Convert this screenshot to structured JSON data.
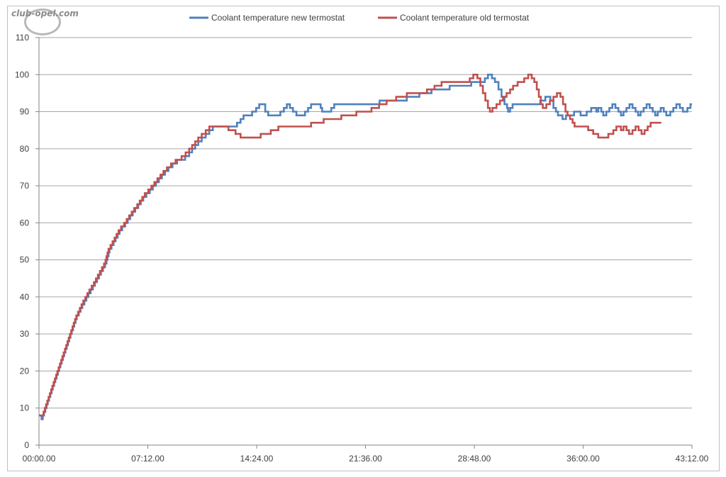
{
  "watermark": "club-opel.com",
  "chart_data": {
    "type": "line",
    "title": "",
    "xlabel": "",
    "ylabel": "",
    "ylim": [
      0,
      110
    ],
    "y_ticks": [
      0,
      10,
      20,
      30,
      40,
      50,
      60,
      70,
      80,
      90,
      100,
      110
    ],
    "xlim": [
      0,
      2592
    ],
    "x_unit": "seconds (mm:ss.00 labels)",
    "x_ticks": [
      {
        "value": 0,
        "label": "00:00.00"
      },
      {
        "value": 432,
        "label": "07:12.00"
      },
      {
        "value": 864,
        "label": "14:24.00"
      },
      {
        "value": 1296,
        "label": "21:36.00"
      },
      {
        "value": 1728,
        "label": "28:48.00"
      },
      {
        "value": 2160,
        "label": "36:00.00"
      },
      {
        "value": 2592,
        "label": "43:12.00"
      }
    ],
    "grid": "horizontal",
    "legend_position": "top",
    "series": [
      {
        "name": "Coolant temperature new termostat",
        "color": "#4f81bd",
        "points": [
          [
            0,
            8
          ],
          [
            10,
            7
          ],
          [
            15,
            8
          ],
          [
            20,
            9
          ],
          [
            25,
            10
          ],
          [
            30,
            11
          ],
          [
            35,
            12
          ],
          [
            40,
            13
          ],
          [
            45,
            14
          ],
          [
            50,
            15
          ],
          [
            55,
            16
          ],
          [
            60,
            17
          ],
          [
            65,
            18
          ],
          [
            70,
            19
          ],
          [
            75,
            20
          ],
          [
            80,
            21
          ],
          [
            85,
            22
          ],
          [
            90,
            23
          ],
          [
            95,
            24
          ],
          [
            100,
            25
          ],
          [
            105,
            26
          ],
          [
            110,
            27
          ],
          [
            115,
            28
          ],
          [
            120,
            29
          ],
          [
            125,
            30
          ],
          [
            130,
            31
          ],
          [
            135,
            32
          ],
          [
            140,
            33
          ],
          [
            145,
            34
          ],
          [
            150,
            35
          ],
          [
            158,
            36
          ],
          [
            165,
            37
          ],
          [
            172,
            38
          ],
          [
            180,
            39
          ],
          [
            188,
            40
          ],
          [
            196,
            41
          ],
          [
            205,
            42
          ],
          [
            214,
            43
          ],
          [
            222,
            44
          ],
          [
            230,
            45
          ],
          [
            238,
            46
          ],
          [
            246,
            47
          ],
          [
            254,
            48
          ],
          [
            262,
            49
          ],
          [
            268,
            50
          ],
          [
            272,
            51
          ],
          [
            276,
            52
          ],
          [
            280,
            53
          ],
          [
            288,
            54
          ],
          [
            296,
            55
          ],
          [
            304,
            56
          ],
          [
            312,
            57
          ],
          [
            320,
            58
          ],
          [
            330,
            59
          ],
          [
            342,
            60
          ],
          [
            352,
            61
          ],
          [
            362,
            62
          ],
          [
            372,
            63
          ],
          [
            382,
            64
          ],
          [
            394,
            65
          ],
          [
            404,
            66
          ],
          [
            414,
            67
          ],
          [
            426,
            68
          ],
          [
            440,
            69
          ],
          [
            452,
            70
          ],
          [
            464,
            71
          ],
          [
            476,
            72
          ],
          [
            488,
            73
          ],
          [
            500,
            74
          ],
          [
            514,
            75
          ],
          [
            530,
            76
          ],
          [
            548,
            77
          ],
          [
            580,
            78
          ],
          [
            596,
            79
          ],
          [
            608,
            80
          ],
          [
            620,
            81
          ],
          [
            632,
            82
          ],
          [
            646,
            83
          ],
          [
            662,
            84
          ],
          [
            676,
            85
          ],
          [
            690,
            86
          ],
          [
            786,
            87
          ],
          [
            800,
            88
          ],
          [
            812,
            89
          ],
          [
            846,
            90
          ],
          [
            862,
            91
          ],
          [
            874,
            92
          ],
          [
            898,
            90
          ],
          [
            910,
            89
          ],
          [
            958,
            90
          ],
          [
            972,
            91
          ],
          [
            984,
            92
          ],
          [
            996,
            91
          ],
          [
            1008,
            90
          ],
          [
            1022,
            89
          ],
          [
            1056,
            90
          ],
          [
            1068,
            91
          ],
          [
            1080,
            92
          ],
          [
            1118,
            91
          ],
          [
            1124,
            90
          ],
          [
            1160,
            91
          ],
          [
            1172,
            92
          ],
          [
            1352,
            93
          ],
          [
            1460,
            94
          ],
          [
            1510,
            95
          ],
          [
            1558,
            96
          ],
          [
            1630,
            97
          ],
          [
            1716,
            98
          ],
          [
            1770,
            99
          ],
          [
            1782,
            100
          ],
          [
            1798,
            99
          ],
          [
            1810,
            98
          ],
          [
            1824,
            96
          ],
          [
            1836,
            94
          ],
          [
            1848,
            92
          ],
          [
            1858,
            91
          ],
          [
            1862,
            90
          ],
          [
            1870,
            91
          ],
          [
            1880,
            92
          ],
          [
            1990,
            93
          ],
          [
            2010,
            94
          ],
          [
            2030,
            93
          ],
          [
            2042,
            91
          ],
          [
            2052,
            90
          ],
          [
            2060,
            89
          ],
          [
            2078,
            88
          ],
          [
            2092,
            89
          ],
          [
            2124,
            90
          ],
          [
            2150,
            89
          ],
          [
            2174,
            90
          ],
          [
            2192,
            91
          ],
          [
            2212,
            90
          ],
          [
            2220,
            91
          ],
          [
            2232,
            90
          ],
          [
            2240,
            89
          ],
          [
            2252,
            90
          ],
          [
            2264,
            91
          ],
          [
            2276,
            92
          ],
          [
            2288,
            91
          ],
          [
            2300,
            90
          ],
          [
            2310,
            89
          ],
          [
            2320,
            90
          ],
          [
            2332,
            91
          ],
          [
            2344,
            92
          ],
          [
            2356,
            91
          ],
          [
            2368,
            90
          ],
          [
            2378,
            89
          ],
          [
            2388,
            90
          ],
          [
            2400,
            91
          ],
          [
            2412,
            92
          ],
          [
            2424,
            91
          ],
          [
            2436,
            90
          ],
          [
            2446,
            89
          ],
          [
            2456,
            90
          ],
          [
            2468,
            91
          ],
          [
            2480,
            90
          ],
          [
            2490,
            89
          ],
          [
            2506,
            90
          ],
          [
            2518,
            91
          ],
          [
            2530,
            92
          ],
          [
            2544,
            91
          ],
          [
            2556,
            90
          ],
          [
            2574,
            91
          ],
          [
            2586,
            92
          ],
          [
            2600,
            92
          ]
        ]
      },
      {
        "name": "Coolant temperature old termostat",
        "color": "#c0504d",
        "points": [
          [
            0,
            8
          ],
          [
            18,
            9
          ],
          [
            23,
            10
          ],
          [
            28,
            11
          ],
          [
            33,
            12
          ],
          [
            38,
            13
          ],
          [
            43,
            14
          ],
          [
            48,
            15
          ],
          [
            53,
            16
          ],
          [
            58,
            17
          ],
          [
            63,
            18
          ],
          [
            68,
            19
          ],
          [
            73,
            20
          ],
          [
            78,
            21
          ],
          [
            83,
            22
          ],
          [
            88,
            23
          ],
          [
            93,
            24
          ],
          [
            98,
            25
          ],
          [
            103,
            26
          ],
          [
            108,
            27
          ],
          [
            113,
            28
          ],
          [
            118,
            29
          ],
          [
            123,
            30
          ],
          [
            128,
            31
          ],
          [
            133,
            32
          ],
          [
            138,
            33
          ],
          [
            143,
            34
          ],
          [
            148,
            35
          ],
          [
            155,
            36
          ],
          [
            162,
            37
          ],
          [
            169,
            38
          ],
          [
            176,
            39
          ],
          [
            184,
            40
          ],
          [
            192,
            41
          ],
          [
            200,
            42
          ],
          [
            209,
            43
          ],
          [
            218,
            44
          ],
          [
            226,
            45
          ],
          [
            234,
            46
          ],
          [
            242,
            47
          ],
          [
            250,
            48
          ],
          [
            258,
            49
          ],
          [
            264,
            50
          ],
          [
            268,
            51
          ],
          [
            272,
            52
          ],
          [
            276,
            53
          ],
          [
            284,
            54
          ],
          [
            292,
            55
          ],
          [
            300,
            56
          ],
          [
            308,
            57
          ],
          [
            316,
            58
          ],
          [
            326,
            59
          ],
          [
            338,
            60
          ],
          [
            348,
            61
          ],
          [
            358,
            62
          ],
          [
            368,
            63
          ],
          [
            378,
            64
          ],
          [
            390,
            65
          ],
          [
            400,
            66
          ],
          [
            410,
            67
          ],
          [
            420,
            68
          ],
          [
            434,
            69
          ],
          [
            446,
            70
          ],
          [
            458,
            71
          ],
          [
            470,
            72
          ],
          [
            482,
            73
          ],
          [
            494,
            74
          ],
          [
            508,
            75
          ],
          [
            524,
            76
          ],
          [
            542,
            77
          ],
          [
            566,
            78
          ],
          [
            582,
            79
          ],
          [
            596,
            80
          ],
          [
            608,
            81
          ],
          [
            620,
            82
          ],
          [
            632,
            83
          ],
          [
            646,
            84
          ],
          [
            662,
            85
          ],
          [
            676,
            86
          ],
          [
            740,
            86
          ],
          [
            752,
            85
          ],
          [
            780,
            84
          ],
          [
            800,
            83
          ],
          [
            880,
            84
          ],
          [
            920,
            85
          ],
          [
            950,
            86
          ],
          [
            1080,
            87
          ],
          [
            1130,
            88
          ],
          [
            1200,
            89
          ],
          [
            1260,
            90
          ],
          [
            1320,
            91
          ],
          [
            1350,
            92
          ],
          [
            1380,
            93
          ],
          [
            1418,
            94
          ],
          [
            1460,
            95
          ],
          [
            1540,
            96
          ],
          [
            1570,
            97
          ],
          [
            1598,
            98
          ],
          [
            1710,
            99
          ],
          [
            1724,
            100
          ],
          [
            1740,
            99
          ],
          [
            1752,
            97
          ],
          [
            1762,
            95
          ],
          [
            1772,
            93
          ],
          [
            1782,
            91
          ],
          [
            1790,
            90
          ],
          [
            1800,
            91
          ],
          [
            1816,
            92
          ],
          [
            1830,
            93
          ],
          [
            1842,
            94
          ],
          [
            1856,
            95
          ],
          [
            1870,
            96
          ],
          [
            1882,
            97
          ],
          [
            1900,
            98
          ],
          [
            1926,
            99
          ],
          [
            1942,
            100
          ],
          [
            1956,
            99
          ],
          [
            1966,
            98
          ],
          [
            1976,
            96
          ],
          [
            1984,
            94
          ],
          [
            1992,
            92
          ],
          [
            2000,
            91
          ],
          [
            2014,
            92
          ],
          [
            2028,
            93
          ],
          [
            2042,
            94
          ],
          [
            2056,
            95
          ],
          [
            2070,
            94
          ],
          [
            2080,
            92
          ],
          [
            2090,
            90
          ],
          [
            2098,
            89
          ],
          [
            2108,
            88
          ],
          [
            2118,
            87
          ],
          [
            2126,
            86
          ],
          [
            2180,
            85
          ],
          [
            2200,
            84
          ],
          [
            2220,
            83
          ],
          [
            2260,
            84
          ],
          [
            2280,
            85
          ],
          [
            2292,
            86
          ],
          [
            2310,
            85
          ],
          [
            2320,
            86
          ],
          [
            2332,
            85
          ],
          [
            2342,
            84
          ],
          [
            2356,
            85
          ],
          [
            2368,
            86
          ],
          [
            2380,
            85
          ],
          [
            2392,
            84
          ],
          [
            2404,
            85
          ],
          [
            2416,
            86
          ],
          [
            2428,
            87
          ],
          [
            2470,
            87
          ]
        ]
      }
    ]
  }
}
